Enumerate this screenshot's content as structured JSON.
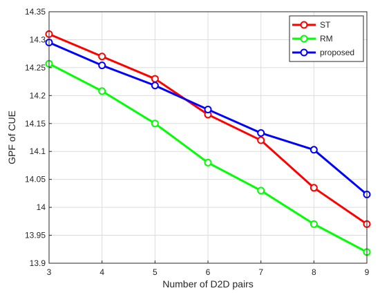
{
  "chart_data": {
    "type": "line",
    "xlabel": "Number of D2D pairs",
    "ylabel": "GPF of CUE",
    "xlim": [
      3,
      9
    ],
    "ylim": [
      13.9,
      14.35
    ],
    "x": [
      3,
      4,
      5,
      6,
      7,
      8,
      9
    ],
    "xticks": [
      3,
      4,
      5,
      6,
      7,
      8,
      9
    ],
    "yticks": [
      13.9,
      13.95,
      14,
      14.05,
      14.1,
      14.15,
      14.2,
      14.25,
      14.3,
      14.35
    ],
    "ytick_labels": [
      "13.9",
      "13.95",
      "14",
      "14.05",
      "14.1",
      "14.15",
      "14.2",
      "14.25",
      "14.3",
      "14.35"
    ],
    "grid": true,
    "legend_position": "top-right",
    "series": [
      {
        "name": "ST",
        "color": "#ff0000",
        "values": [
          14.31,
          14.27,
          14.23,
          14.166,
          14.12,
          14.035,
          13.97
        ]
      },
      {
        "name": "RM",
        "color": "#00ff00",
        "values": [
          14.257,
          14.208,
          14.15,
          14.08,
          14.03,
          13.97,
          13.92
        ]
      },
      {
        "name": "proposed",
        "color": "#0000ff",
        "values": [
          14.295,
          14.254,
          14.218,
          14.175,
          14.133,
          14.103,
          14.023
        ]
      }
    ]
  }
}
